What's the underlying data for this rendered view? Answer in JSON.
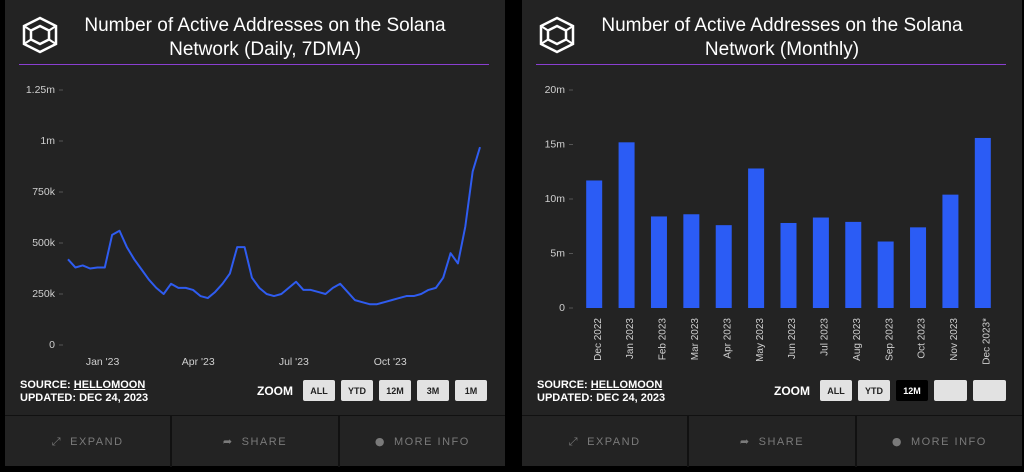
{
  "chart_data": [
    {
      "type": "line",
      "title": "Number of Active Addresses on the Solana Network (Daily, 7DMA)",
      "values": [
        420000,
        380000,
        390000,
        375000,
        380000,
        380000,
        540000,
        560000,
        480000,
        420000,
        370000,
        320000,
        280000,
        250000,
        300000,
        280000,
        280000,
        270000,
        240000,
        230000,
        260000,
        300000,
        350000,
        480000,
        480000,
        330000,
        280000,
        250000,
        240000,
        250000,
        280000,
        310000,
        270000,
        270000,
        260000,
        250000,
        280000,
        300000,
        260000,
        220000,
        210000,
        200000,
        200000,
        210000,
        220000,
        230000,
        240000,
        240000,
        250000,
        270000,
        280000,
        330000,
        450000,
        400000,
        580000,
        850000,
        970000
      ],
      "color": "#2f5cf0",
      "xlim": [
        0,
        56
      ],
      "xticks": [
        {
          "value": 4.7,
          "label": "Jan '23"
        },
        {
          "value": 17.7,
          "label": "Apr '23"
        },
        {
          "value": 30.7,
          "label": "Jul '23"
        },
        {
          "value": 43.8,
          "label": "Oct '23"
        }
      ],
      "ylim": [
        0,
        1250000
      ],
      "yticks": [
        {
          "value": 0,
          "label": "0"
        },
        {
          "value": 250000,
          "label": "250k"
        },
        {
          "value": 500000,
          "label": "500k"
        },
        {
          "value": 750000,
          "label": "750k"
        },
        {
          "value": 1000000,
          "label": "1m"
        },
        {
          "value": 1250000,
          "label": "1.25m"
        }
      ],
      "grid": false
    },
    {
      "type": "bar",
      "title": "Number of Active Addresses on the Solana Network (Monthly)",
      "categories": [
        "Dec 2022",
        "Jan 2023",
        "Feb 2023",
        "Mar 2023",
        "Apr 2023",
        "May 2023",
        "Jun 2023",
        "Jul 2023",
        "Aug 2023",
        "Sep 2023",
        "Oct 2023",
        "Nov 2023",
        "Dec 2023*"
      ],
      "values": [
        11700000,
        15200000,
        8400000,
        8600000,
        7600000,
        12800000,
        7800000,
        8300000,
        7900000,
        6100000,
        7400000,
        10400000,
        15600000
      ],
      "color": "#2b5cf5",
      "ylim": [
        0,
        20000000
      ],
      "yticks": [
        {
          "value": 0,
          "label": "0"
        },
        {
          "value": 5000000,
          "label": "5m"
        },
        {
          "value": 10000000,
          "label": "10m"
        },
        {
          "value": 15000000,
          "label": "15m"
        },
        {
          "value": 20000000,
          "label": "20m"
        }
      ],
      "grid": false
    }
  ],
  "panels": [
    {
      "source_label": "SOURCE:",
      "source": "HELLOMOON",
      "updated": "UPDATED: DEC 24, 2023",
      "zoom_label": "ZOOM",
      "zoom_buttons": [
        "ALL",
        "YTD",
        "12M",
        "3M",
        "1M"
      ],
      "actions": [
        "EXPAND",
        "SHARE",
        "MORE INFO"
      ]
    },
    {
      "source_label": "SOURCE:",
      "source": "HELLOMOON",
      "updated": "UPDATED: DEC 24, 2023",
      "zoom_label": "ZOOM",
      "zoom_buttons": [
        "ALL",
        "YTD",
        "12M"
      ],
      "active_zoom": 2,
      "actions": [
        "EXPAND",
        "SHARE",
        "MORE INFO"
      ]
    }
  ]
}
